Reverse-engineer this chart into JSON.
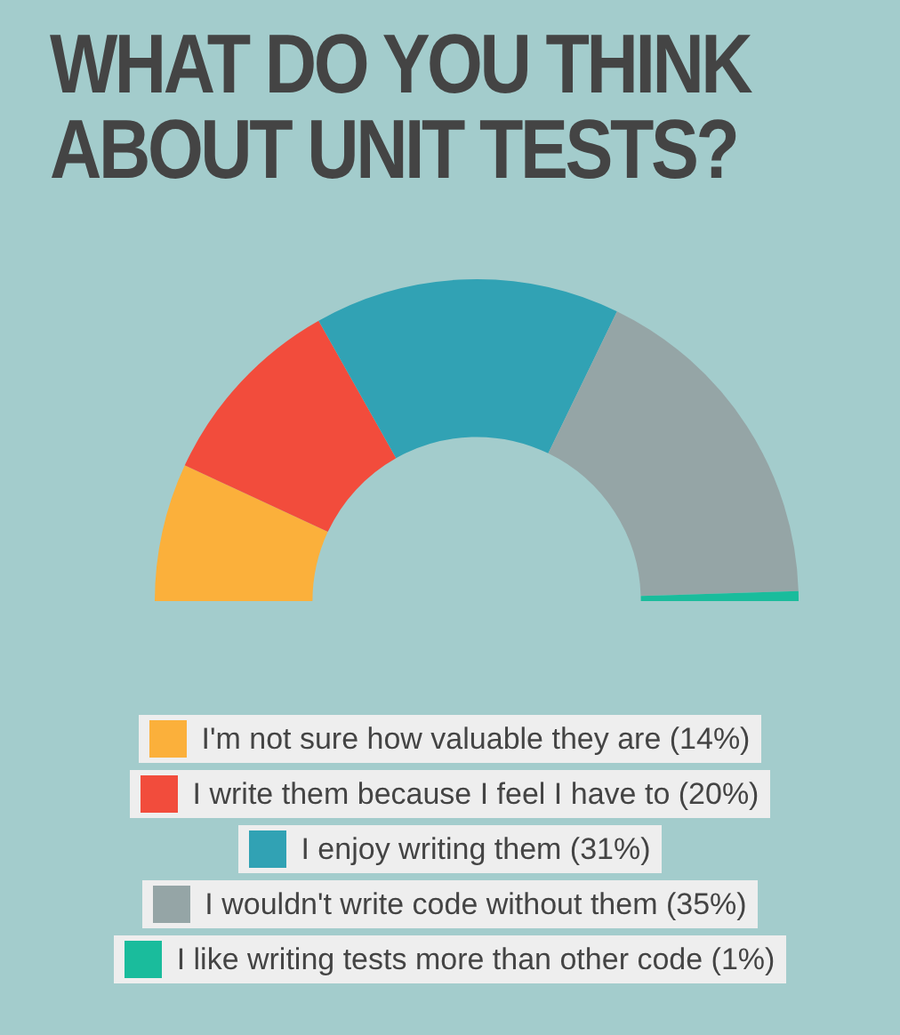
{
  "chart_data": {
    "type": "donut",
    "title": "WHAT DO YOU THINK ABOUT UNIT TESTS?",
    "categories": [
      "I'm not sure how valuable they are (14%)",
      "I write them because I feel I have to (20%)",
      "I enjoy writing them (31%)",
      "I wouldn't write code without them (35%)",
      "I like writing tests more than other code (1%)"
    ],
    "values": [
      14,
      20,
      31,
      35,
      1
    ],
    "colors": [
      "#fbb03b",
      "#f24c3c",
      "#31a2b4",
      "#95a5a6",
      "#1abc9c"
    ],
    "legend": "bottom"
  }
}
